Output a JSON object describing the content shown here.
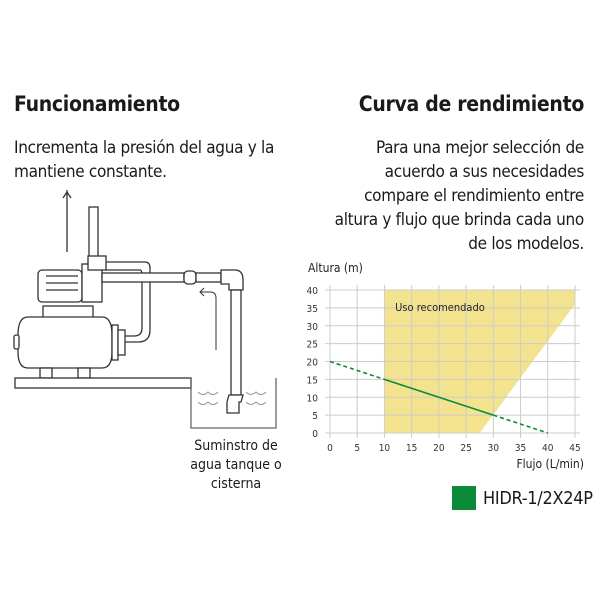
{
  "left": {
    "title": "Funcionamiento",
    "description": "Incrementa la presión del agua y la mantiene constante.",
    "supply_label": "Suminstro de agua tanque o cisterna"
  },
  "right": {
    "title": "Curva de rendimiento",
    "description": "Para una mejor selección de acuerdo a sus necesidades compare el rendimiento entre altura y flujo que brinda cada uno de los modelos."
  },
  "chart_data": {
    "type": "line",
    "title": "",
    "xlabel": "Flujo (L/min)",
    "ylabel": "Altura (m)",
    "xlim": [
      0,
      45
    ],
    "ylim": [
      0,
      40
    ],
    "xticks": [
      0,
      5,
      10,
      15,
      20,
      25,
      30,
      35,
      40,
      45
    ],
    "yticks": [
      0,
      5,
      10,
      15,
      20,
      25,
      30,
      35,
      40
    ],
    "grid": true,
    "region": {
      "label": "Uso recomendado",
      "color": "#f3e38f",
      "polygon": [
        [
          10,
          0
        ],
        [
          10,
          40
        ],
        [
          45,
          40
        ],
        [
          45,
          36
        ],
        [
          27.5,
          0
        ]
      ]
    },
    "series": [
      {
        "name": "HIDR-1/2X24P",
        "color": "#0b8a3a",
        "x": [
          0,
          10,
          30,
          40
        ],
        "y": [
          20,
          15,
          5,
          0
        ],
        "solid_range": [
          10,
          30
        ]
      }
    ],
    "legend": "bottom-right"
  }
}
